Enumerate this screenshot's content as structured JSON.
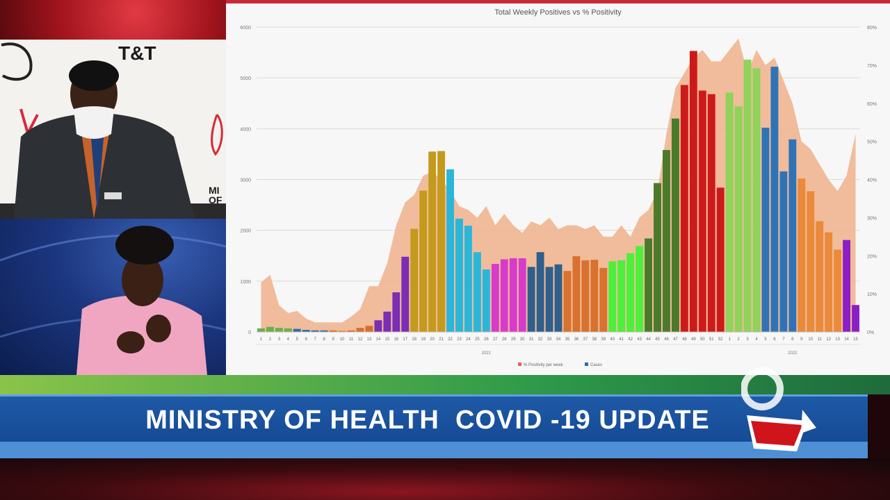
{
  "broadcast": {
    "headline": "MINISTRY OF HEALTH  COVID -19 UPDATE",
    "backdrop_brand": "T&T",
    "backdrop_ministry": "MI\nOF"
  },
  "colors": {
    "positivity_area": "#efb590",
    "legend_area": "#e8605a",
    "legend_cases": "#2a6fa8"
  },
  "chart_data": {
    "type": "bar",
    "title": "Total Weekly Positives vs % Positivity",
    "y_left_ticks": [
      "0",
      "1000",
      "2000",
      "3000",
      "4000",
      "5000",
      "6000"
    ],
    "y_right_ticks": [
      "0%",
      "10%",
      "20%",
      "30%",
      "40%",
      "50%",
      "60%",
      "70%",
      "80%"
    ],
    "ylim_left": [
      0,
      6000
    ],
    "ylim_right": [
      0,
      80
    ],
    "x_tick_labels": [
      "1",
      "2",
      "3",
      "4",
      "5",
      "6",
      "7",
      "8",
      "9",
      "10",
      "11",
      "12",
      "13",
      "14",
      "15",
      "16",
      "17",
      "18",
      "19",
      "20",
      "21",
      "22",
      "23",
      "24",
      "25",
      "26",
      "27",
      "28",
      "29",
      "30",
      "31",
      "32",
      "33",
      "34",
      "35",
      "36",
      "37",
      "38",
      "39",
      "40",
      "41",
      "42",
      "43",
      "44",
      "45",
      "46",
      "47",
      "48",
      "49",
      "50",
      "51",
      "52",
      "1",
      "2",
      "3",
      "4",
      "5",
      "6",
      "7",
      "8",
      "9",
      "10",
      "11",
      "12",
      "13",
      "14",
      "15"
    ],
    "year_labels": [
      {
        "label": "2021",
        "at_index": 25
      },
      {
        "label": "2022",
        "at_index": 59
      }
    ],
    "legend": [
      "% Positivity per week",
      "Cases"
    ],
    "series": [
      {
        "name": "Cases",
        "values": [
          70,
          100,
          80,
          70,
          60,
          40,
          30,
          30,
          30,
          20,
          30,
          80,
          120,
          230,
          400,
          780,
          1480,
          2030,
          2780,
          3550,
          3560,
          3200,
          2230,
          2090,
          1570,
          1230,
          1340,
          1430,
          1450,
          1450,
          1280,
          1570,
          1280,
          1330,
          1200,
          1490,
          1410,
          1420,
          1260,
          1390,
          1410,
          1550,
          1690,
          1840,
          2930,
          3580,
          4200,
          4860,
          5530,
          4750,
          4680,
          2840,
          4710,
          4440,
          5360,
          5190,
          4020,
          5220,
          3160,
          3790,
          3020,
          2770,
          2180,
          1960,
          1620,
          1810,
          530
        ],
        "colors": [
          "#6ab04c",
          "#6ab04c",
          "#6ab04c",
          "#6ab04c",
          "#2a6fa8",
          "#2a6fa8",
          "#2a6fa8",
          "#2a6fa8",
          "#d76f2a",
          "#d76f2a",
          "#d76f2a",
          "#d76f2a",
          "#d76f2a",
          "#7b2db3",
          "#7b2db3",
          "#7b2db3",
          "#7b2db3",
          "#c49a1c",
          "#c49a1c",
          "#c49a1c",
          "#c49a1c",
          "#2bb6d9",
          "#2bb6d9",
          "#2bb6d9",
          "#2bb6d9",
          "#2bb6d9",
          "#d63cc9",
          "#d63cc9",
          "#d63cc9",
          "#d63cc9",
          "#2f5f8a",
          "#2f5f8a",
          "#2f5f8a",
          "#2f5f8a",
          "#d8722e",
          "#d8722e",
          "#d8722e",
          "#d8722e",
          "#d8722e",
          "#4cf03a",
          "#4cf03a",
          "#4cf03a",
          "#4cf03a",
          "#4a7a2a",
          "#4a7a2a",
          "#4a7a2a",
          "#4a7a2a",
          "#cc1a1a",
          "#cc1a1a",
          "#cc1a1a",
          "#cc1a1a",
          "#cc1a1a",
          "#8fd35a",
          "#8fd35a",
          "#8fd35a",
          "#8fd35a",
          "#2f73b6",
          "#2f73b6",
          "#2f73b6",
          "#2f73b6",
          "#ea8a3a",
          "#ea8a3a",
          "#ea8a3a",
          "#ea8a3a",
          "#ea8a3a",
          "#8b1fc4",
          "#8b1fc4"
        ]
      },
      {
        "name": "% Positivity per week",
        "values": [
          13,
          15,
          7,
          5,
          5.5,
          3.5,
          2.5,
          2.5,
          2.5,
          2.5,
          4,
          6,
          12,
          12,
          18,
          28,
          34,
          36,
          41,
          42,
          40,
          37,
          33,
          32,
          30,
          33,
          28,
          31,
          28,
          26,
          29,
          28,
          30,
          27,
          28,
          28,
          27,
          28,
          25,
          25,
          28,
          25,
          30,
          32,
          37,
          52,
          64,
          68,
          72,
          74,
          71,
          71,
          74,
          77,
          68,
          74,
          70,
          72,
          66,
          60,
          50,
          48,
          44,
          40,
          37,
          41,
          52
        ]
      }
    ]
  }
}
